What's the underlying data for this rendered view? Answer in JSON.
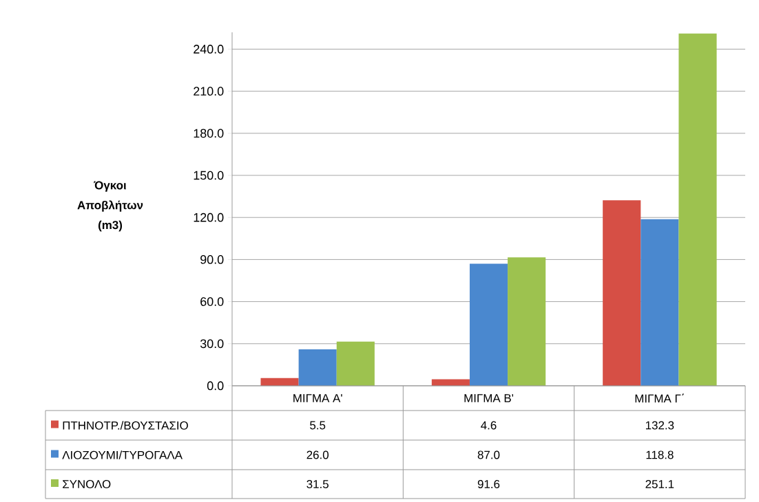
{
  "chart_data": {
    "type": "bar",
    "ylabel": "Όγκοι Αποβλήτων (m3)",
    "categories": [
      "ΜΙΓΜΑ Α'",
      "ΜΙΓΜΑ Β'",
      "ΜΙΓΜΑ Γ΄"
    ],
    "series": [
      {
        "name": "ΠΤΗΝΟΤΡ./ΒΟΥΣΤΑΣΙΟ",
        "color": "#d64f45",
        "values": [
          5.5,
          4.6,
          132.3
        ],
        "value_labels": [
          "5.5",
          "4.6",
          "132.3"
        ]
      },
      {
        "name": "ΛΙΟΖΟΥΜΙ/ΤΥΡΟΓΑΛΑ",
        "color": "#4a88cf",
        "values": [
          26.0,
          87.0,
          118.8
        ],
        "value_labels": [
          "26.0",
          "87.0",
          "118.8"
        ]
      },
      {
        "name": "ΣΥΝΟΛΟ",
        "color": "#9dc24f",
        "values": [
          31.5,
          91.6,
          251.1
        ],
        "value_labels": [
          "31.5",
          "91.6",
          "251.1"
        ]
      }
    ],
    "ylim": [
      0,
      252
    ],
    "yticks": [
      {
        "value": 0,
        "label": "0.0"
      },
      {
        "value": 30,
        "label": "30.0"
      },
      {
        "value": 60,
        "label": "60.0"
      },
      {
        "value": 90,
        "label": "90.0"
      },
      {
        "value": 120,
        "label": "120.0"
      },
      {
        "value": 150,
        "label": "150.0"
      },
      {
        "value": 180,
        "label": "180.0"
      },
      {
        "value": 210,
        "label": "210.0"
      },
      {
        "value": 240,
        "label": "240.0"
      }
    ],
    "grid": "y",
    "legend": "bottom"
  }
}
